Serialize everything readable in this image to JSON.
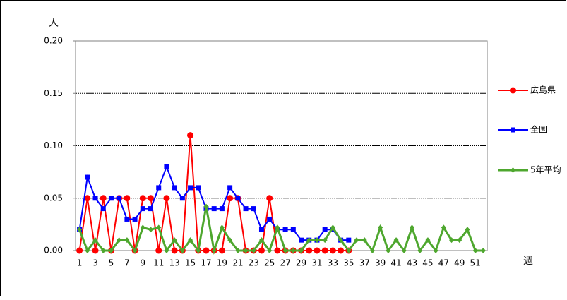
{
  "chart_data": {
    "type": "line",
    "y_label": "人",
    "x_label": "週",
    "categories": [
      "1",
      null,
      "3",
      null,
      "5",
      null,
      "7",
      null,
      "9",
      null,
      "11",
      null,
      "13",
      null,
      "15",
      null,
      "17",
      null,
      "19",
      null,
      "21",
      null,
      "23",
      null,
      "25",
      null,
      "27",
      null,
      "29",
      null,
      "31",
      null,
      "33",
      null,
      "35",
      null,
      "37",
      null,
      "39",
      null,
      "41",
      null,
      "43",
      null,
      "45",
      null,
      "47",
      null,
      "49",
      null,
      "51",
      null
    ],
    "series": [
      {
        "name": "広島県",
        "color": "#ff0000",
        "marker": "circle",
        "values": [
          0,
          0.05,
          0,
          0.05,
          0,
          0.05,
          0.05,
          0,
          0.05,
          0.05,
          0,
          0.05,
          0,
          0,
          0.11,
          0,
          0,
          0,
          0,
          0.05,
          0.05,
          0,
          0,
          0,
          0.05,
          0,
          0,
          0,
          0,
          0,
          0,
          0,
          0,
          0,
          0,
          null,
          null,
          null,
          null,
          null,
          null,
          null,
          null,
          null,
          null,
          null,
          null,
          null,
          null,
          null,
          null,
          null
        ]
      },
      {
        "name": "全国",
        "color": "#0000ff",
        "marker": "square",
        "values": [
          0.02,
          0.07,
          0.05,
          0.04,
          0.05,
          0.05,
          0.03,
          0.03,
          0.04,
          0.04,
          0.06,
          0.08,
          0.06,
          0.05,
          0.06,
          0.06,
          0.04,
          0.04,
          0.04,
          0.06,
          0.05,
          0.04,
          0.04,
          0.02,
          0.03,
          0.02,
          0.02,
          0.02,
          0.01,
          0.01,
          0.01,
          0.02,
          0.02,
          0.01,
          0.01,
          null,
          null,
          null,
          null,
          null,
          null,
          null,
          null,
          null,
          null,
          null,
          null,
          null,
          null,
          null,
          null,
          null
        ]
      },
      {
        "name": "5年平均",
        "color": "#4ea72e",
        "marker": "diamond",
        "values": [
          0.02,
          0,
          0.01,
          0,
          0,
          0.01,
          0.01,
          0,
          0.022,
          0.02,
          0.022,
          0,
          0.01,
          0,
          0.01,
          0,
          0.042,
          0,
          0.022,
          0.01,
          0,
          0,
          0,
          0.01,
          0,
          0.022,
          0,
          0,
          0,
          0.01,
          0.01,
          0.01,
          0.022,
          0.01,
          0,
          0.01,
          0.01,
          0,
          0.022,
          0,
          0.01,
          0,
          0.022,
          0,
          0.01,
          0,
          0.022,
          0.01,
          0.01,
          0.02,
          0,
          0
        ]
      }
    ],
    "ylim": [
      0,
      0.2
    ],
    "yticks": [
      {
        "value": 0,
        "label": "0.00"
      },
      {
        "value": 0.05,
        "label": "0.05"
      },
      {
        "value": 0.1,
        "label": "0.10"
      },
      {
        "value": 0.15,
        "label": "0.15"
      },
      {
        "value": 0.2,
        "label": "0.20"
      }
    ],
    "grid": true,
    "legend": "right"
  }
}
